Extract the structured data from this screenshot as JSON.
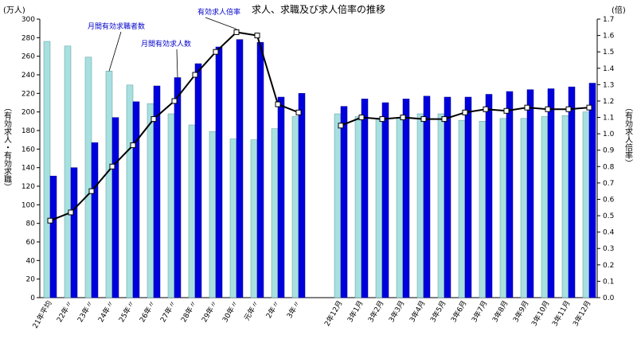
{
  "chart_data": {
    "type": "bar",
    "title": "求人、求職及び求人倍率の推移",
    "left_axis": {
      "unit": "(万人)",
      "label": "（有効求人・有効求職）",
      "ylim": [
        0,
        300
      ],
      "ticks": [
        "0",
        "20",
        "40",
        "60",
        "80",
        "100",
        "120",
        "140",
        "160",
        "180",
        "200",
        "220",
        "240",
        "260",
        "280",
        "300"
      ]
    },
    "right_axis": {
      "unit": "(倍)",
      "label": "（有効求人倍率）",
      "ylim": [
        0,
        1.7
      ],
      "ticks": [
        "0.0",
        "0.1",
        "0.2",
        "0.3",
        "0.4",
        "0.5",
        "0.6",
        "0.7",
        "0.8",
        "0.9",
        "1.0",
        "1.1",
        "1.2",
        "1.3",
        "1.4",
        "1.5",
        "1.6",
        "1.7"
      ]
    },
    "grid": false,
    "categories_group1": [
      "21年平均",
      "22年〃",
      "23年〃",
      "24年〃",
      "25年〃",
      "26年〃",
      "27年〃",
      "28年〃",
      "29年〃",
      "30年〃",
      "元年〃",
      "2年〃",
      "3年〃"
    ],
    "categories_group2": [
      "2年12月",
      "3年1月",
      "3年2月",
      "3年3月",
      "3年4月",
      "3年5月",
      "3年6月",
      "3年7月",
      "3年8月",
      "3年9月",
      "3年10月",
      "3年11月",
      "3年12月"
    ],
    "series": [
      {
        "name": "月間有効求職者数",
        "color": "#a8e0e0",
        "values_group1": [
          276,
          271,
          259,
          244,
          229,
          209,
          198,
          186,
          179,
          171,
          170,
          182,
          195
        ],
        "values_group2": [
          198,
          195,
          192,
          193,
          198,
          198,
          191,
          190,
          193,
          193,
          195,
          196,
          200
        ]
      },
      {
        "name": "月間有効求人数",
        "color": "#0000dd",
        "values_group1": [
          131,
          140,
          167,
          194,
          211,
          228,
          237,
          252,
          270,
          278,
          275,
          216,
          220
        ],
        "values_group2": [
          206,
          214,
          210,
          214,
          217,
          216,
          216,
          219,
          222,
          224,
          225,
          227,
          231
        ]
      },
      {
        "name": "有効求人倍率",
        "type": "line",
        "color": "#000000",
        "values_group1": [
          0.47,
          0.52,
          0.65,
          0.8,
          0.93,
          1.09,
          1.2,
          1.36,
          1.5,
          1.62,
          1.6,
          1.18,
          1.13
        ],
        "values_group2": [
          1.05,
          1.1,
          1.09,
          1.1,
          1.09,
          1.09,
          1.13,
          1.15,
          1.14,
          1.16,
          1.15,
          1.15,
          1.16
        ]
      }
    ],
    "callouts": {
      "ratio": "有効求人倍率",
      "seekers": "月間有効求職者数",
      "openings": "月間有効求人数"
    }
  }
}
